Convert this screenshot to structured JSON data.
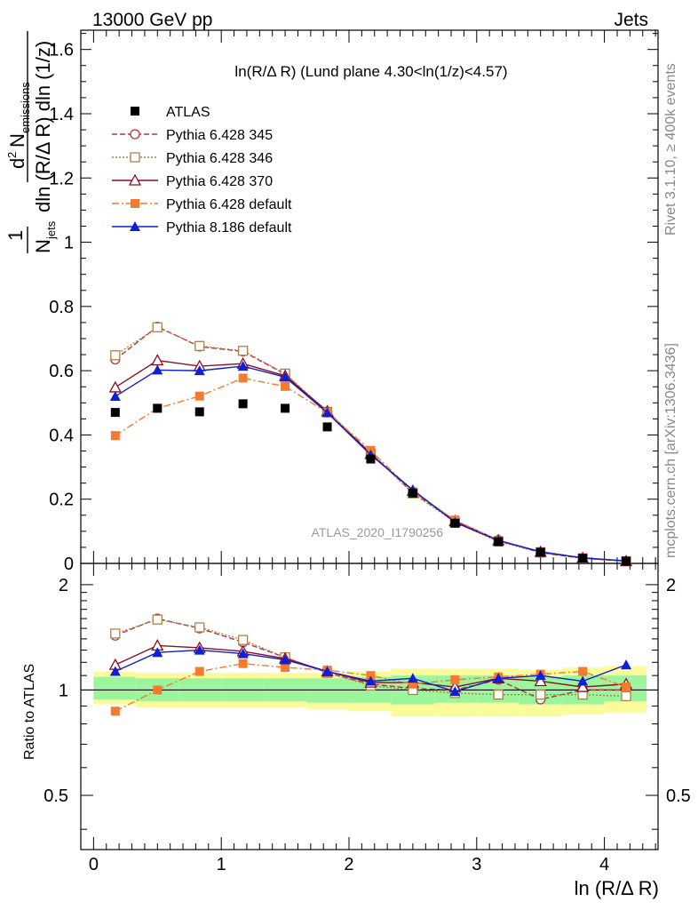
{
  "header": {
    "left": "13000 GeV pp",
    "right": "Jets"
  },
  "side_labels": {
    "rivet": "Rivet 3.1.10, ≥ 400k events",
    "mcplots": "mcplots.cern.ch [arXiv:1306.3436]"
  },
  "chart_data": {
    "type": "line",
    "title": "ln(R/Δ R) (Lund plane 4.30<ln(1/z)<4.57)",
    "watermark": "ATLAS_2020_I1790256",
    "xlabel": "ln (R/Δ R)",
    "ylabel": "1/N_jets d²N_emissions / dln(R/ΔR) dln(1/z)",
    "ylabel_parts": {
      "frac_num": "1",
      "n": "N",
      "jets_sub": "jets",
      "jets_den_text": "dln (R/Δ R) dln (1/z)",
      "d2": "d",
      "d2_sup": "2",
      "emissions_sub": "emissions"
    },
    "ratio_ylabel": "Ratio to ATLAS",
    "xlim": [
      -0.1,
      4.42
    ],
    "ylim": [
      0,
      1.66
    ],
    "ratio_ylim": [
      0.35,
      2.3
    ],
    "x_ticks": [
      0,
      1,
      2,
      3,
      4
    ],
    "y_ticks": [
      0,
      0.2,
      0.4,
      0.6,
      0.8,
      1,
      1.2,
      1.4,
      1.6
    ],
    "ratio_ticks": [
      0.5,
      1,
      2
    ],
    "ratio_ticks_right": [
      0.5,
      2
    ],
    "x": [
      0.17,
      0.5,
      0.83,
      1.17,
      1.5,
      1.83,
      2.17,
      2.5,
      2.83,
      3.17,
      3.5,
      3.83,
      4.17
    ],
    "band_edges": [
      0.0,
      0.33,
      0.67,
      1.0,
      1.33,
      1.67,
      2.0,
      2.33,
      2.67,
      3.0,
      3.33,
      3.67,
      4.0,
      4.33
    ],
    "band_green": [
      [
        0.94,
        1.09
      ],
      [
        0.93,
        1.08
      ],
      [
        0.93,
        1.08
      ],
      [
        0.93,
        1.08
      ],
      [
        0.93,
        1.08
      ],
      [
        0.92,
        1.08
      ],
      [
        0.92,
        1.09
      ],
      [
        0.91,
        1.1
      ],
      [
        0.92,
        1.1
      ],
      [
        0.92,
        1.1
      ],
      [
        0.91,
        1.09
      ],
      [
        0.91,
        1.1
      ],
      [
        0.93,
        1.1
      ]
    ],
    "band_yellow": [
      [
        0.91,
        1.13
      ],
      [
        0.89,
        1.12
      ],
      [
        0.89,
        1.12
      ],
      [
        0.89,
        1.12
      ],
      [
        0.89,
        1.12
      ],
      [
        0.88,
        1.12
      ],
      [
        0.87,
        1.13
      ],
      [
        0.84,
        1.15
      ],
      [
        0.84,
        1.15
      ],
      [
        0.84,
        1.15
      ],
      [
        0.84,
        1.14
      ],
      [
        0.85,
        1.16
      ],
      [
        0.86,
        1.17
      ]
    ],
    "series": [
      {
        "name": "ATLAS",
        "color": "#000000",
        "marker": "square-filled",
        "line": "none",
        "values": [
          0.47,
          0.483,
          0.472,
          0.497,
          0.483,
          0.425,
          0.325,
          0.219,
          0.125,
          0.068,
          0.035,
          0.016,
          0.007
        ],
        "ratio": [
          1,
          1,
          1,
          1,
          1,
          1,
          1,
          1,
          1,
          1,
          1,
          1,
          1
        ]
      },
      {
        "name": "Pythia 6.428 345",
        "color": "#b8323c",
        "marker": "circle-open",
        "line": "dashed",
        "values": [
          0.635,
          0.737,
          0.675,
          0.66,
          0.589,
          0.47,
          0.344,
          0.22,
          0.132,
          0.073,
          0.033,
          0.016,
          0.007
        ],
        "ratio": [
          1.43,
          1.6,
          1.5,
          1.37,
          1.24,
          1.12,
          1.04,
          1.01,
          1.0,
          1.07,
          0.94,
          1.0,
          1.0
        ]
      },
      {
        "name": "Pythia 6.428 346",
        "color": "#a9844a",
        "marker": "square-open",
        "line": "dotted",
        "values": [
          0.648,
          0.735,
          0.677,
          0.662,
          0.591,
          0.472,
          0.342,
          0.218,
          0.128,
          0.068,
          0.034,
          0.016,
          0.007
        ],
        "ratio": [
          1.45,
          1.59,
          1.51,
          1.39,
          1.24,
          1.12,
          1.03,
          1.0,
          0.98,
          0.97,
          0.97,
          0.97,
          0.96
        ]
      },
      {
        "name": "Pythia 6.428 370",
        "color": "#8b0d22",
        "marker": "triangle-open",
        "line": "solid",
        "values": [
          0.548,
          0.632,
          0.614,
          0.622,
          0.584,
          0.474,
          0.341,
          0.226,
          0.132,
          0.072,
          0.036,
          0.017,
          0.007
        ],
        "ratio": [
          1.18,
          1.34,
          1.32,
          1.29,
          1.23,
          1.13,
          1.05,
          1.05,
          1.02,
          1.08,
          1.06,
          1.02,
          1.04
        ]
      },
      {
        "name": "Pythia 6.428 default",
        "color": "#f47a2f",
        "marker": "square-filled",
        "line": "dashdot",
        "values": [
          0.398,
          0.483,
          0.521,
          0.577,
          0.551,
          0.47,
          0.352,
          0.223,
          0.135,
          0.072,
          0.037,
          0.018,
          0.007
        ],
        "ratio": [
          0.87,
          1.0,
          1.13,
          1.19,
          1.16,
          1.14,
          1.1,
          1.04,
          1.07,
          1.09,
          1.11,
          1.13,
          1.02
        ]
      },
      {
        "name": "Pythia 8.186 default",
        "color": "#0f1fd1",
        "marker": "triangle-filled",
        "line": "solid",
        "values": [
          0.52,
          0.602,
          0.6,
          0.614,
          0.58,
          0.469,
          0.338,
          0.229,
          0.128,
          0.071,
          0.036,
          0.017,
          0.008
        ],
        "ratio": [
          1.13,
          1.28,
          1.3,
          1.27,
          1.22,
          1.13,
          1.06,
          1.08,
          0.99,
          1.08,
          1.1,
          1.06,
          1.18
        ]
      }
    ]
  }
}
